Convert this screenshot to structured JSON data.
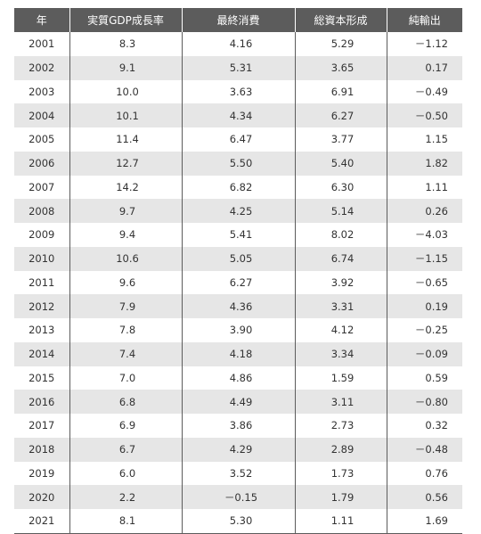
{
  "table": {
    "headers": [
      "年",
      "実質GDP成長率",
      "最終消費",
      "総資本形成",
      "純輸出"
    ],
    "rows": [
      [
        "2001",
        "8.3",
        "4.16",
        "5.29",
        "－1.12"
      ],
      [
        "2002",
        "9.1",
        "5.31",
        "3.65",
        "0.17"
      ],
      [
        "2003",
        "10.0",
        "3.63",
        "6.91",
        "－0.49"
      ],
      [
        "2004",
        "10.1",
        "4.34",
        "6.27",
        "－0.50"
      ],
      [
        "2005",
        "11.4",
        "6.47",
        "3.77",
        "1.15"
      ],
      [
        "2006",
        "12.7",
        "5.50",
        "5.40",
        "1.82"
      ],
      [
        "2007",
        "14.2",
        "6.82",
        "6.30",
        "1.11"
      ],
      [
        "2008",
        "9.7",
        "4.25",
        "5.14",
        "0.26"
      ],
      [
        "2009",
        "9.4",
        "5.41",
        "8.02",
        "－4.03"
      ],
      [
        "2010",
        "10.6",
        "5.05",
        "6.74",
        "－1.15"
      ],
      [
        "2011",
        "9.6",
        "6.27",
        "3.92",
        "－0.65"
      ],
      [
        "2012",
        "7.9",
        "4.36",
        "3.31",
        "0.19"
      ],
      [
        "2013",
        "7.8",
        "3.90",
        "4.12",
        "－0.25"
      ],
      [
        "2014",
        "7.4",
        "4.18",
        "3.34",
        "－0.09"
      ],
      [
        "2015",
        "7.0",
        "4.86",
        "1.59",
        "0.59"
      ],
      [
        "2016",
        "6.8",
        "4.49",
        "3.11",
        "－0.80"
      ],
      [
        "2017",
        "6.9",
        "3.86",
        "2.73",
        "0.32"
      ],
      [
        "2018",
        "6.7",
        "4.29",
        "2.89",
        "－0.48"
      ],
      [
        "2019",
        "6.0",
        "3.52",
        "1.73",
        "0.76"
      ],
      [
        "2020",
        "2.2",
        "－0.15",
        "1.79",
        "0.56"
      ],
      [
        "2021",
        "8.1",
        "5.30",
        "1.11",
        "1.69"
      ]
    ]
  },
  "colors": {
    "header_bg": "#5c5c5c",
    "header_text": "#ffffff",
    "stripe": "#e6e6e6",
    "rule": "#5c5c5c"
  }
}
